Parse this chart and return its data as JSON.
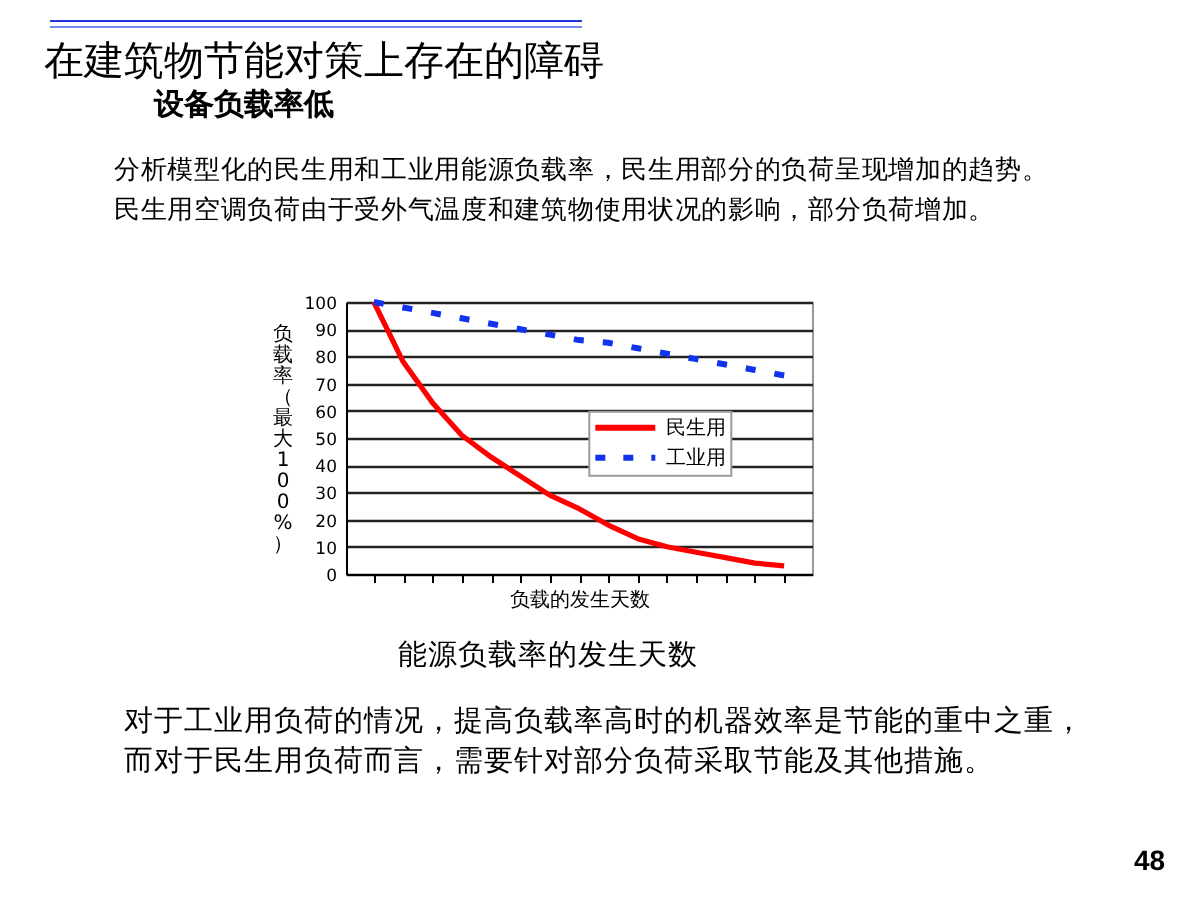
{
  "chart_data": {
    "type": "line",
    "title": "在建筑物节能对策上存在的障碍",
    "subtitle": "设备负载率低",
    "xlabel": "负载的发生天数",
    "ylabel": "负载率（最大100%）",
    "annotations": [
      "分析模型化的民生用和工业用能源负载率，民生用部分的负荷呈现增加的趋势。",
      "民生用空调负荷由于受外气温度和建筑物使用状况的影响，部分负荷增加。",
      "能源负载率的发生天数",
      "对于工业用负荷的情况，提高负载率高时的机器效率是节能的重中之重，",
      "而对于民生用负荷而言，需要针对部分负荷采取节能及其他措施。",
      "48"
    ],
    "categories": [
      null,
      null,
      null,
      null,
      null,
      null,
      null,
      null,
      null,
      null,
      null,
      null,
      null,
      null,
      null
    ],
    "series": [
      {
        "name": "民生用",
        "color": "#ff0000",
        "line_style": "solid",
        "values": [
          100,
          78,
          63,
          51,
          43,
          36,
          29,
          24,
          18,
          13,
          10,
          8,
          6,
          4,
          3
        ]
      },
      {
        "name": "工业用",
        "color": "#1133ee",
        "line_style": "dashed",
        "values": [
          100,
          98,
          96,
          94,
          92,
          90,
          88,
          86,
          85,
          83,
          81,
          79,
          77,
          75,
          73
        ]
      }
    ],
    "ylim": [
      0,
      100
    ],
    "yticks": [
      0,
      10,
      20,
      30,
      40,
      50,
      60,
      70,
      80,
      90,
      100
    ],
    "grid": "y",
    "legend": "right",
    "tick_labels": "y"
  }
}
